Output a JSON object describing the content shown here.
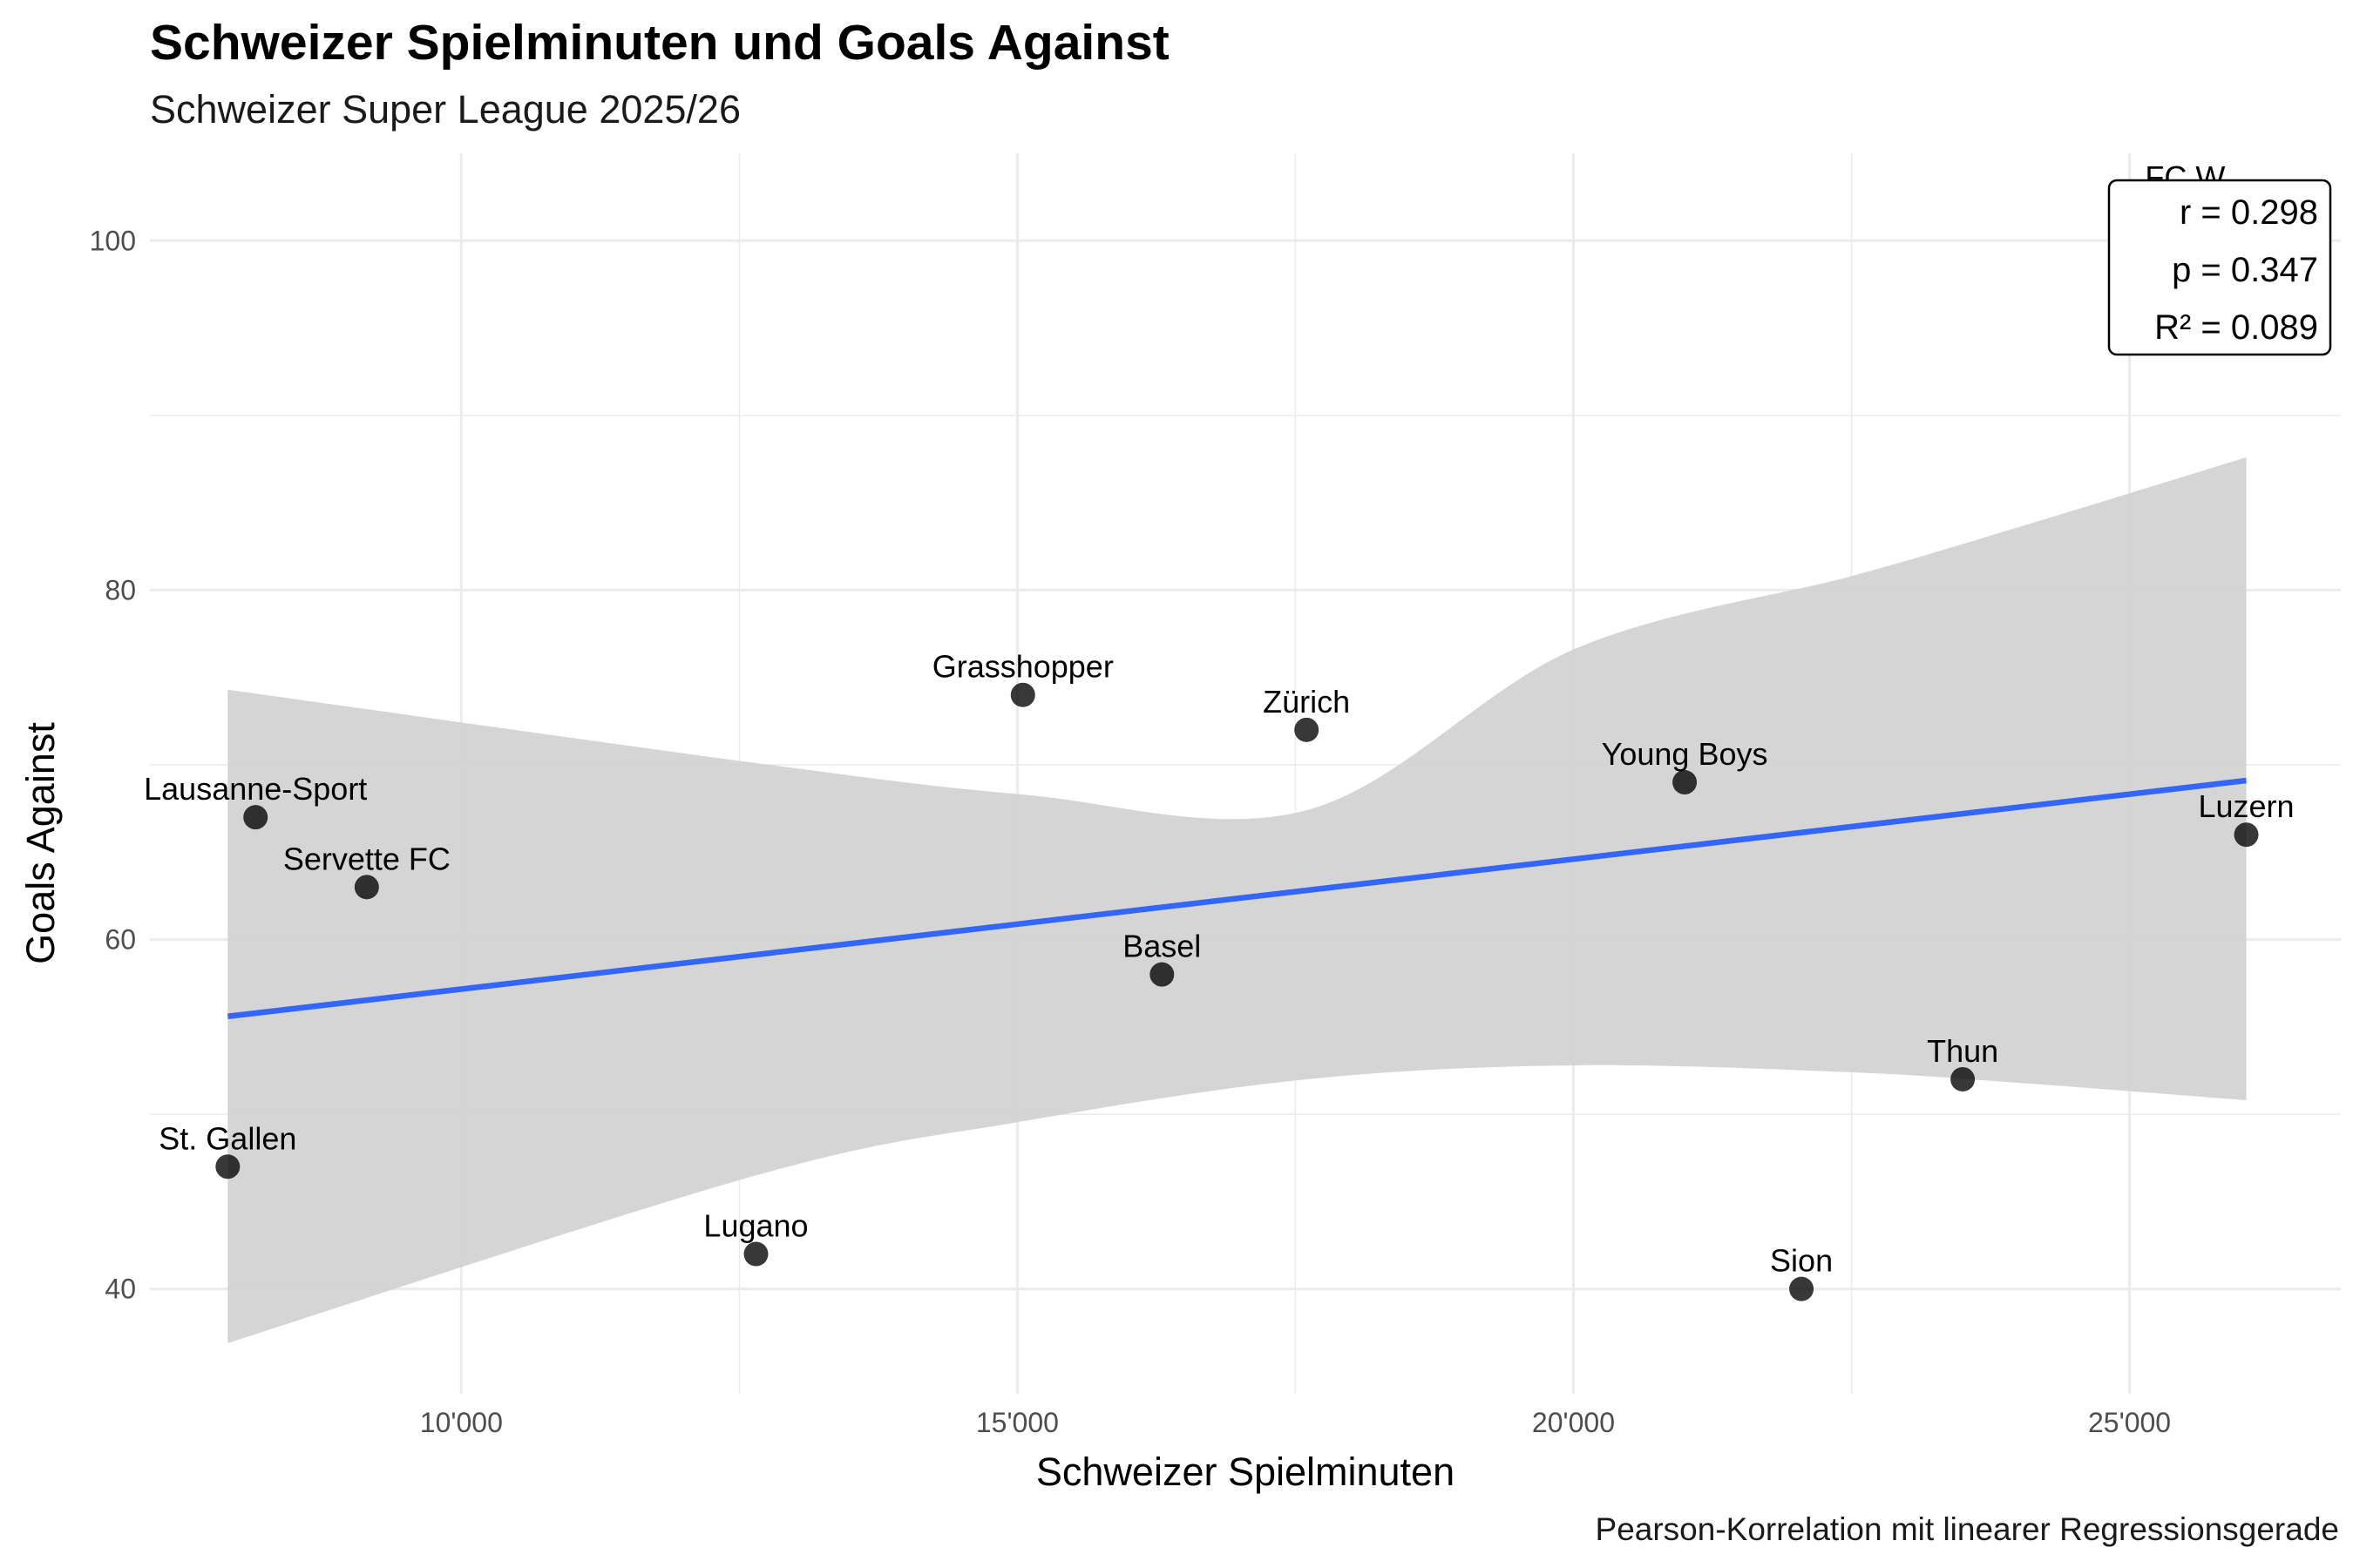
{
  "title": "Schweizer Spielminuten und Goals Against",
  "subtitle": "Schweizer Super League 2025/26",
  "caption": "Pearson-Korrelation mit linearer Regressionsgerade",
  "colors": {
    "point": "#000000",
    "regression_line": "#3366FF",
    "confidence_band": "#D3D3D3",
    "grid": "#EBEBEB"
  },
  "chart_data": {
    "type": "scatter",
    "xlabel": "Schweizer Spielminuten",
    "ylabel": "Goals Against",
    "xlim": [
      7200,
      26900
    ],
    "ylim": [
      34,
      105
    ],
    "x_ticks": [
      10000,
      15000,
      20000,
      25000
    ],
    "x_tick_labels": [
      "10'000",
      "15'000",
      "20'000",
      "25'000"
    ],
    "y_ticks": [
      40,
      60,
      80,
      100
    ],
    "y_tick_labels": [
      "40",
      "60",
      "80",
      "100"
    ],
    "grid": true,
    "points": [
      {
        "label": "St. Gallen",
        "x": 7900,
        "y": 47
      },
      {
        "label": "Lausanne-Sport",
        "x": 8150,
        "y": 67
      },
      {
        "label": "Servette FC",
        "x": 9150,
        "y": 63
      },
      {
        "label": "Lugano",
        "x": 12650,
        "y": 42
      },
      {
        "label": "Grasshopper",
        "x": 15050,
        "y": 74
      },
      {
        "label": "Basel",
        "x": 16300,
        "y": 58
      },
      {
        "label": "Zürich",
        "x": 17600,
        "y": 72
      },
      {
        "label": "Young Boys",
        "x": 21000,
        "y": 69
      },
      {
        "label": "Sion",
        "x": 22050,
        "y": 40
      },
      {
        "label": "Thun",
        "x": 23500,
        "y": 52
      },
      {
        "label": "Luzern",
        "x": 26050,
        "y": 66
      },
      {
        "label": "FC W",
        "x": 25500,
        "y": 102
      }
    ],
    "regression": {
      "x": [
        7900,
        26050
      ],
      "y": [
        55.6,
        69.1
      ]
    },
    "confidence_band": [
      {
        "x": 7900,
        "lower": 36.9,
        "upper": 74.3
      },
      {
        "x": 12650,
        "lower": 46.5,
        "upper": 70.1
      },
      {
        "x": 15050,
        "lower": 49.6,
        "upper": 68.3
      },
      {
        "x": 17600,
        "lower": 52.0,
        "upper": 67.4
      },
      {
        "x": 20000,
        "lower": 52.8,
        "upper": 76.6
      },
      {
        "x": 22500,
        "lower": 52.4,
        "upper": 80.8
      },
      {
        "x": 24000,
        "lower": 51.8,
        "upper": 83.6
      },
      {
        "x": 26050,
        "lower": 50.8,
        "upper": 87.6
      }
    ],
    "stats": [
      "r = 0.298",
      "p = 0.347",
      "R² = 0.089"
    ]
  }
}
